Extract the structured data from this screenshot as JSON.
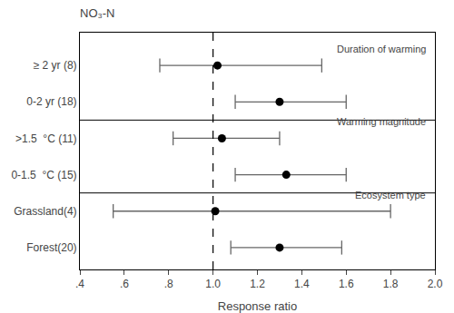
{
  "chart_data": {
    "type": "forest",
    "title": "NO₃-N",
    "xlabel": "Response ratio",
    "categories": [
      "≥ 2 yr (8)",
      "0-2 yr (18)",
      ">1.5  °C (11)",
      "0-1.5  °C (15)",
      "Grassland(4)",
      "Forest(20)"
    ],
    "values": [
      1.02,
      1.3,
      1.04,
      1.33,
      1.01,
      1.3
    ],
    "ci_low": [
      0.76,
      1.1,
      0.82,
      1.1,
      0.55,
      1.08
    ],
    "ci_high": [
      1.49,
      1.6,
      1.3,
      1.6,
      1.8,
      1.58
    ],
    "groups": [
      "Duration of warming",
      "Duration of warming",
      "Warming magnitude",
      "Warming magnitude",
      "Ecosystem type",
      "Ecosystem type"
    ],
    "reference_line": 1.0,
    "xlim": [
      0.4,
      2.0
    ],
    "xticks": [
      {
        "value": 0.4,
        "label": ".4"
      },
      {
        "value": 0.6,
        "label": ".6"
      },
      {
        "value": 0.8,
        "label": ".8"
      },
      {
        "value": 1.0,
        "label": "1.0"
      },
      1.2,
      1.4,
      1.6,
      1.8,
      {
        "value": 2.0,
        "label": "2.0"
      }
    ],
    "color": "black",
    "grid": false
  }
}
